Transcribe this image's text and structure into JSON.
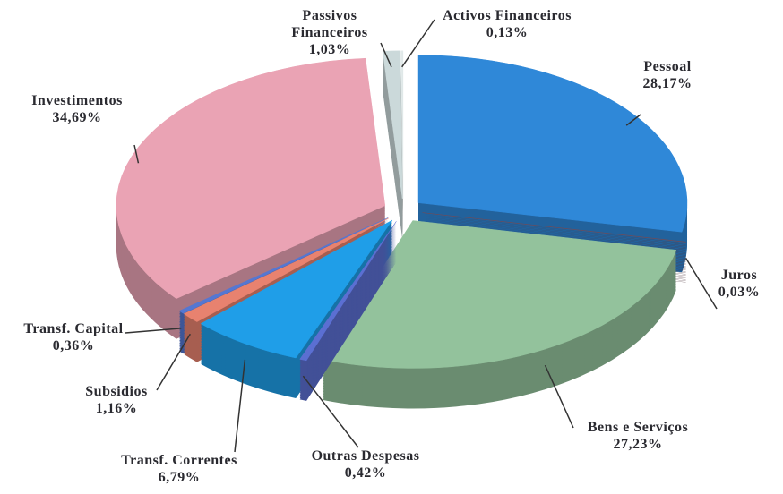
{
  "chart_data": {
    "type": "pie3d",
    "categories": [
      "Pessoal",
      "Juros",
      "Bens e Serviços",
      "Outras Despesas",
      "Transf. Correntes",
      "Subsidios",
      "Transf. Capital",
      "Investimentos",
      "Passivos Financeiros",
      "Activos Financeiros"
    ],
    "values": [
      28.17,
      0.03,
      27.23,
      0.42,
      6.79,
      1.16,
      0.36,
      34.69,
      1.03,
      0.13
    ],
    "value_labels": [
      "28,17%",
      "0,03%",
      "27,23%",
      "0,42%",
      "6,79%",
      "1,16%",
      "0,36%",
      "34,69%",
      "1,03%",
      "0,13%"
    ],
    "colors": [
      "#2f88d8",
      "#6e4c5a",
      "#93c29c",
      "#5b6fd2",
      "#1f9ee8",
      "#e8826f",
      "#5577d2",
      "#eaa3b4",
      "#cbd9da",
      "#e2eaea"
    ]
  }
}
